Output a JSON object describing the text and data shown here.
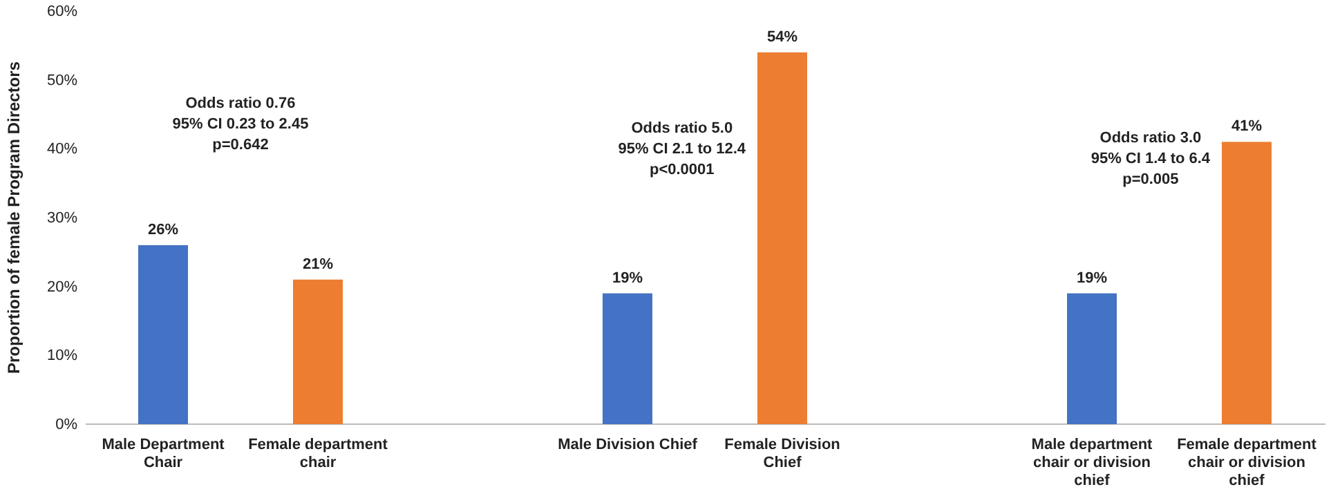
{
  "chart_data": {
    "type": "bar",
    "ylabel": "Proportion of female Program Directors",
    "categories": [
      "Male Department Chair",
      "Female department chair",
      null,
      "Male Division Chief",
      "Female Division Chief",
      null,
      "Male department chair or division chief",
      "Female department chair or division chief"
    ],
    "values": [
      26,
      21,
      null,
      19,
      54,
      null,
      19,
      41
    ],
    "colors": [
      "#4472c4",
      "#ed7d31",
      null,
      "#4472c4",
      "#ed7d31",
      null,
      "#4472c4",
      "#ed7d31"
    ],
    "value_labels": [
      "26%",
      "21%",
      null,
      "19%",
      "54%",
      null,
      "19%",
      "41%"
    ],
    "ylim": [
      0,
      60
    ],
    "yticks": [
      {
        "value": 0,
        "label": "0%"
      },
      {
        "value": 10,
        "label": "10%"
      },
      {
        "value": 20,
        "label": "20%"
      },
      {
        "value": 30,
        "label": "30%"
      },
      {
        "value": 40,
        "label": "40%"
      },
      {
        "value": 50,
        "label": "50%"
      },
      {
        "value": 60,
        "label": "60%"
      }
    ],
    "annotations": [
      "Odds ratio 0.76\n95% CI 0.23 to 2.45\np=0.642",
      "Odds ratio 5.0\n95% CI 2.1 to 12.4\np<0.0001",
      "Odds ratio 3.0\n95% CI 1.4 to 6.4\np=0.005"
    ],
    "grid": false
  }
}
